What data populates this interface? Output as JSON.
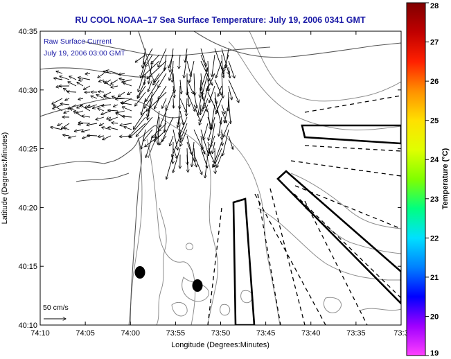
{
  "title": "RU COOL  NOAA–17  Sea Surface Temperature:  July 19, 2006 0341 GMT",
  "annotation": {
    "line1": "Raw Surface Current",
    "line2": "July 19, 2006 03:00 GMT"
  },
  "scale_label": "50 cm/s",
  "x_axis": {
    "label": "Longitude (Degrees:Minutes)",
    "ticks": [
      "74:10",
      "74:05",
      "74:00",
      "73:55",
      "73:50",
      "73:45",
      "73:40",
      "73:35",
      "73:3"
    ]
  },
  "y_axis": {
    "label": "Latitude (Degrees:Minutes)",
    "ticks": [
      "40:35",
      "40:30",
      "40:25",
      "40:20",
      "40:15",
      "40:10"
    ]
  },
  "colorbar": {
    "label": "Temperature (°C)",
    "ticks": [
      "28",
      "27",
      "26",
      "25",
      "24",
      "23",
      "22",
      "21",
      "20",
      "19"
    ],
    "colors": [
      "#ff40ff",
      "#a000ff",
      "#0000ff",
      "#0080ff",
      "#00e0ff",
      "#00ff80",
      "#80ff00",
      "#e0ff00",
      "#ffe000",
      "#ff9000",
      "#ff2000",
      "#c00000",
      "#800000"
    ]
  },
  "chart_data": {
    "type": "map",
    "xlim_minutes_west": [
      10,
      30
    ],
    "ylim_minutes_north": [
      10,
      35
    ],
    "markers": [
      {
        "lon": "74:00",
        "lat": "40:15"
      },
      {
        "lon": "73:57",
        "lat": "40:13"
      }
    ]
  }
}
